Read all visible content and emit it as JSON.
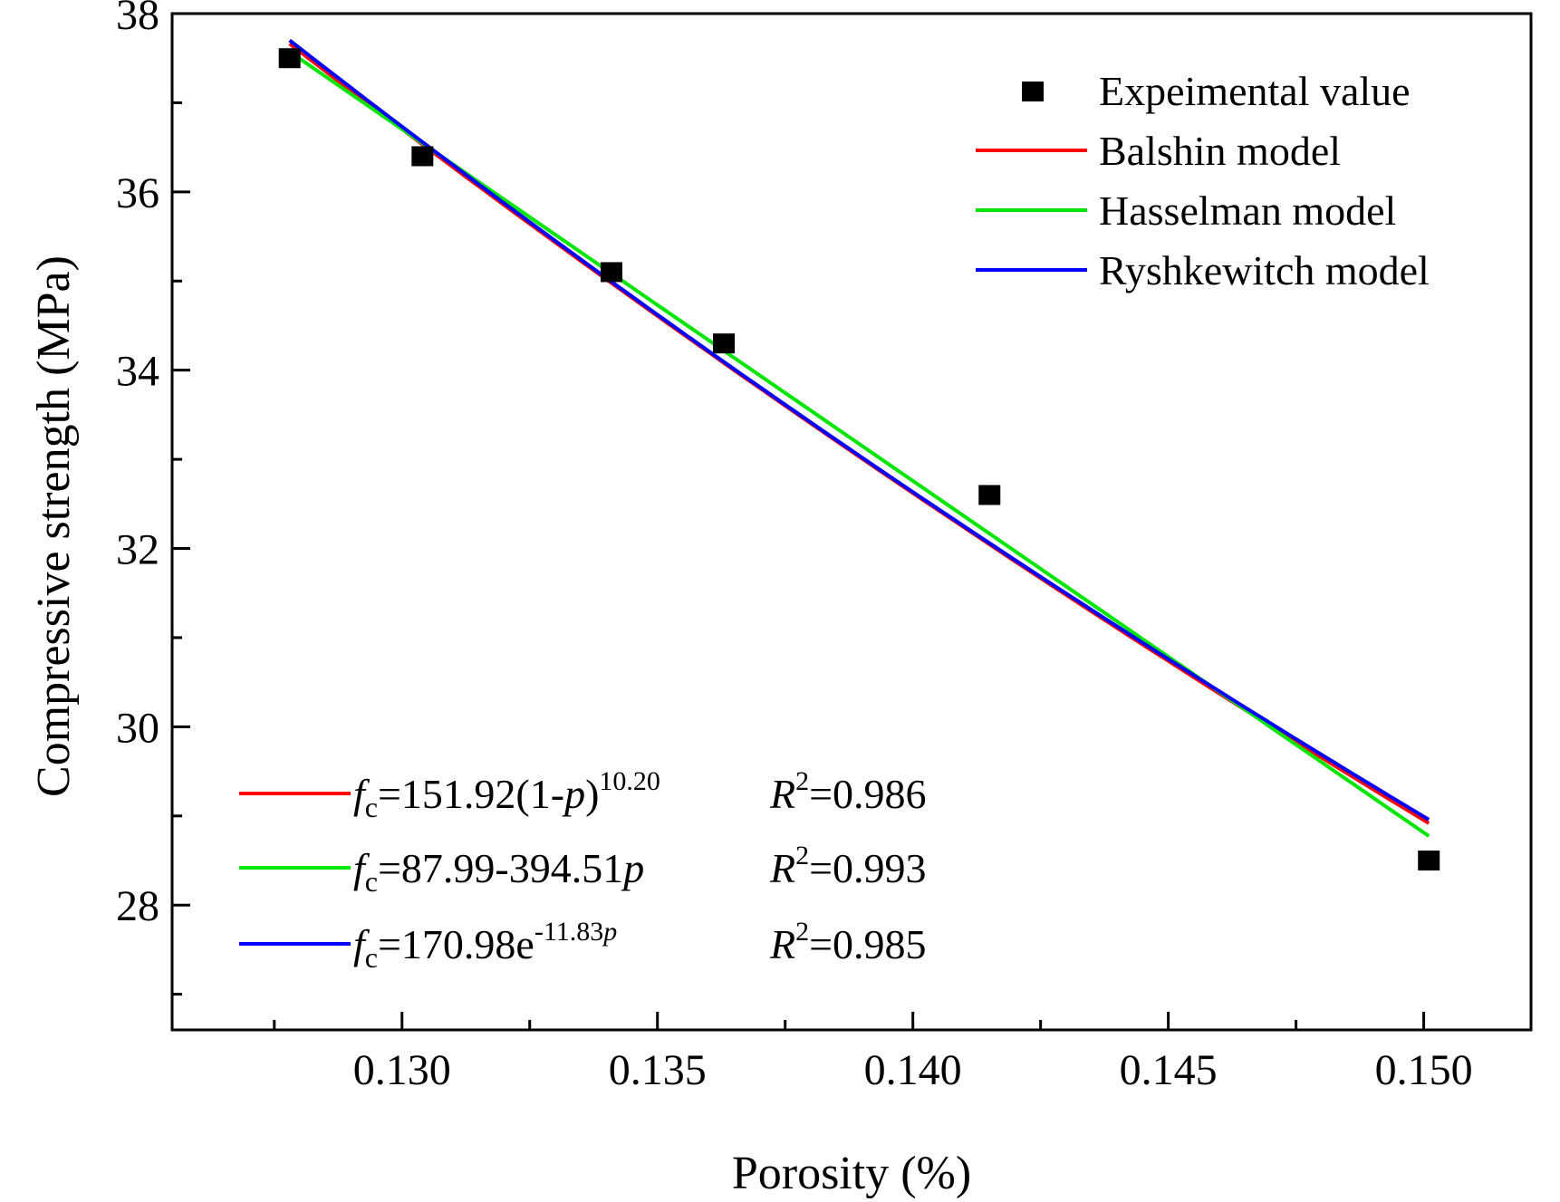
{
  "chart_data": {
    "type": "scatter",
    "xlabel": "Porosity (%)",
    "ylabel": "Compressive strength (MPa)",
    "xlim": [
      0.1255,
      0.1521
    ],
    "ylim": [
      26.6,
      38.0
    ],
    "x_ticks": [
      "0.130",
      "0.135",
      "0.140",
      "0.145",
      "0.150"
    ],
    "x_tick_values": [
      0.13,
      0.135,
      0.14,
      0.145,
      0.15
    ],
    "y_ticks": [
      "28",
      "30",
      "32",
      "34",
      "36",
      "38"
    ],
    "y_tick_values": [
      28,
      30,
      32,
      34,
      36,
      38
    ],
    "series": [
      {
        "name": "Expeimental value",
        "kind": "points",
        "color": "#000000",
        "x": [
          0.1278,
          0.1304,
          0.1341,
          0.1363,
          0.1415,
          0.1501
        ],
        "y": [
          37.5,
          36.4,
          35.1,
          34.3,
          32.6,
          28.5
        ]
      },
      {
        "name": "Balshin model",
        "kind": "line",
        "color": "#ff0000",
        "x_range": [
          0.1278,
          0.1501
        ],
        "equation": {
          "f": "f",
          "sub": "c",
          "main": "=151.92(1-",
          "var": "p",
          "close": ")",
          "sup": "10.20"
        },
        "r2_label": "R",
        "r2_sup": "2",
        "r2_value": "=0.986"
      },
      {
        "name": "Hasselman model",
        "kind": "line",
        "color": "#00e600",
        "x_range": [
          0.1278,
          0.1501
        ],
        "equation": {
          "f": "f",
          "sub": "c",
          "main": "=87.99-394.51",
          "var": "p"
        },
        "r2_label": "R",
        "r2_sup": "2",
        "r2_value": "=0.993"
      },
      {
        "name": "Ryshkewitch model",
        "kind": "line",
        "color": "#0000ff",
        "x_range": [
          0.1278,
          0.1501
        ],
        "equation": {
          "f": "f",
          "sub": "c",
          "main": "=170.98e",
          "sup": "-11.83",
          "sup_var": "p"
        },
        "r2_label": "R",
        "r2_sup": "2",
        "r2_value": "=0.985"
      }
    ],
    "legend_position": "top-right"
  }
}
